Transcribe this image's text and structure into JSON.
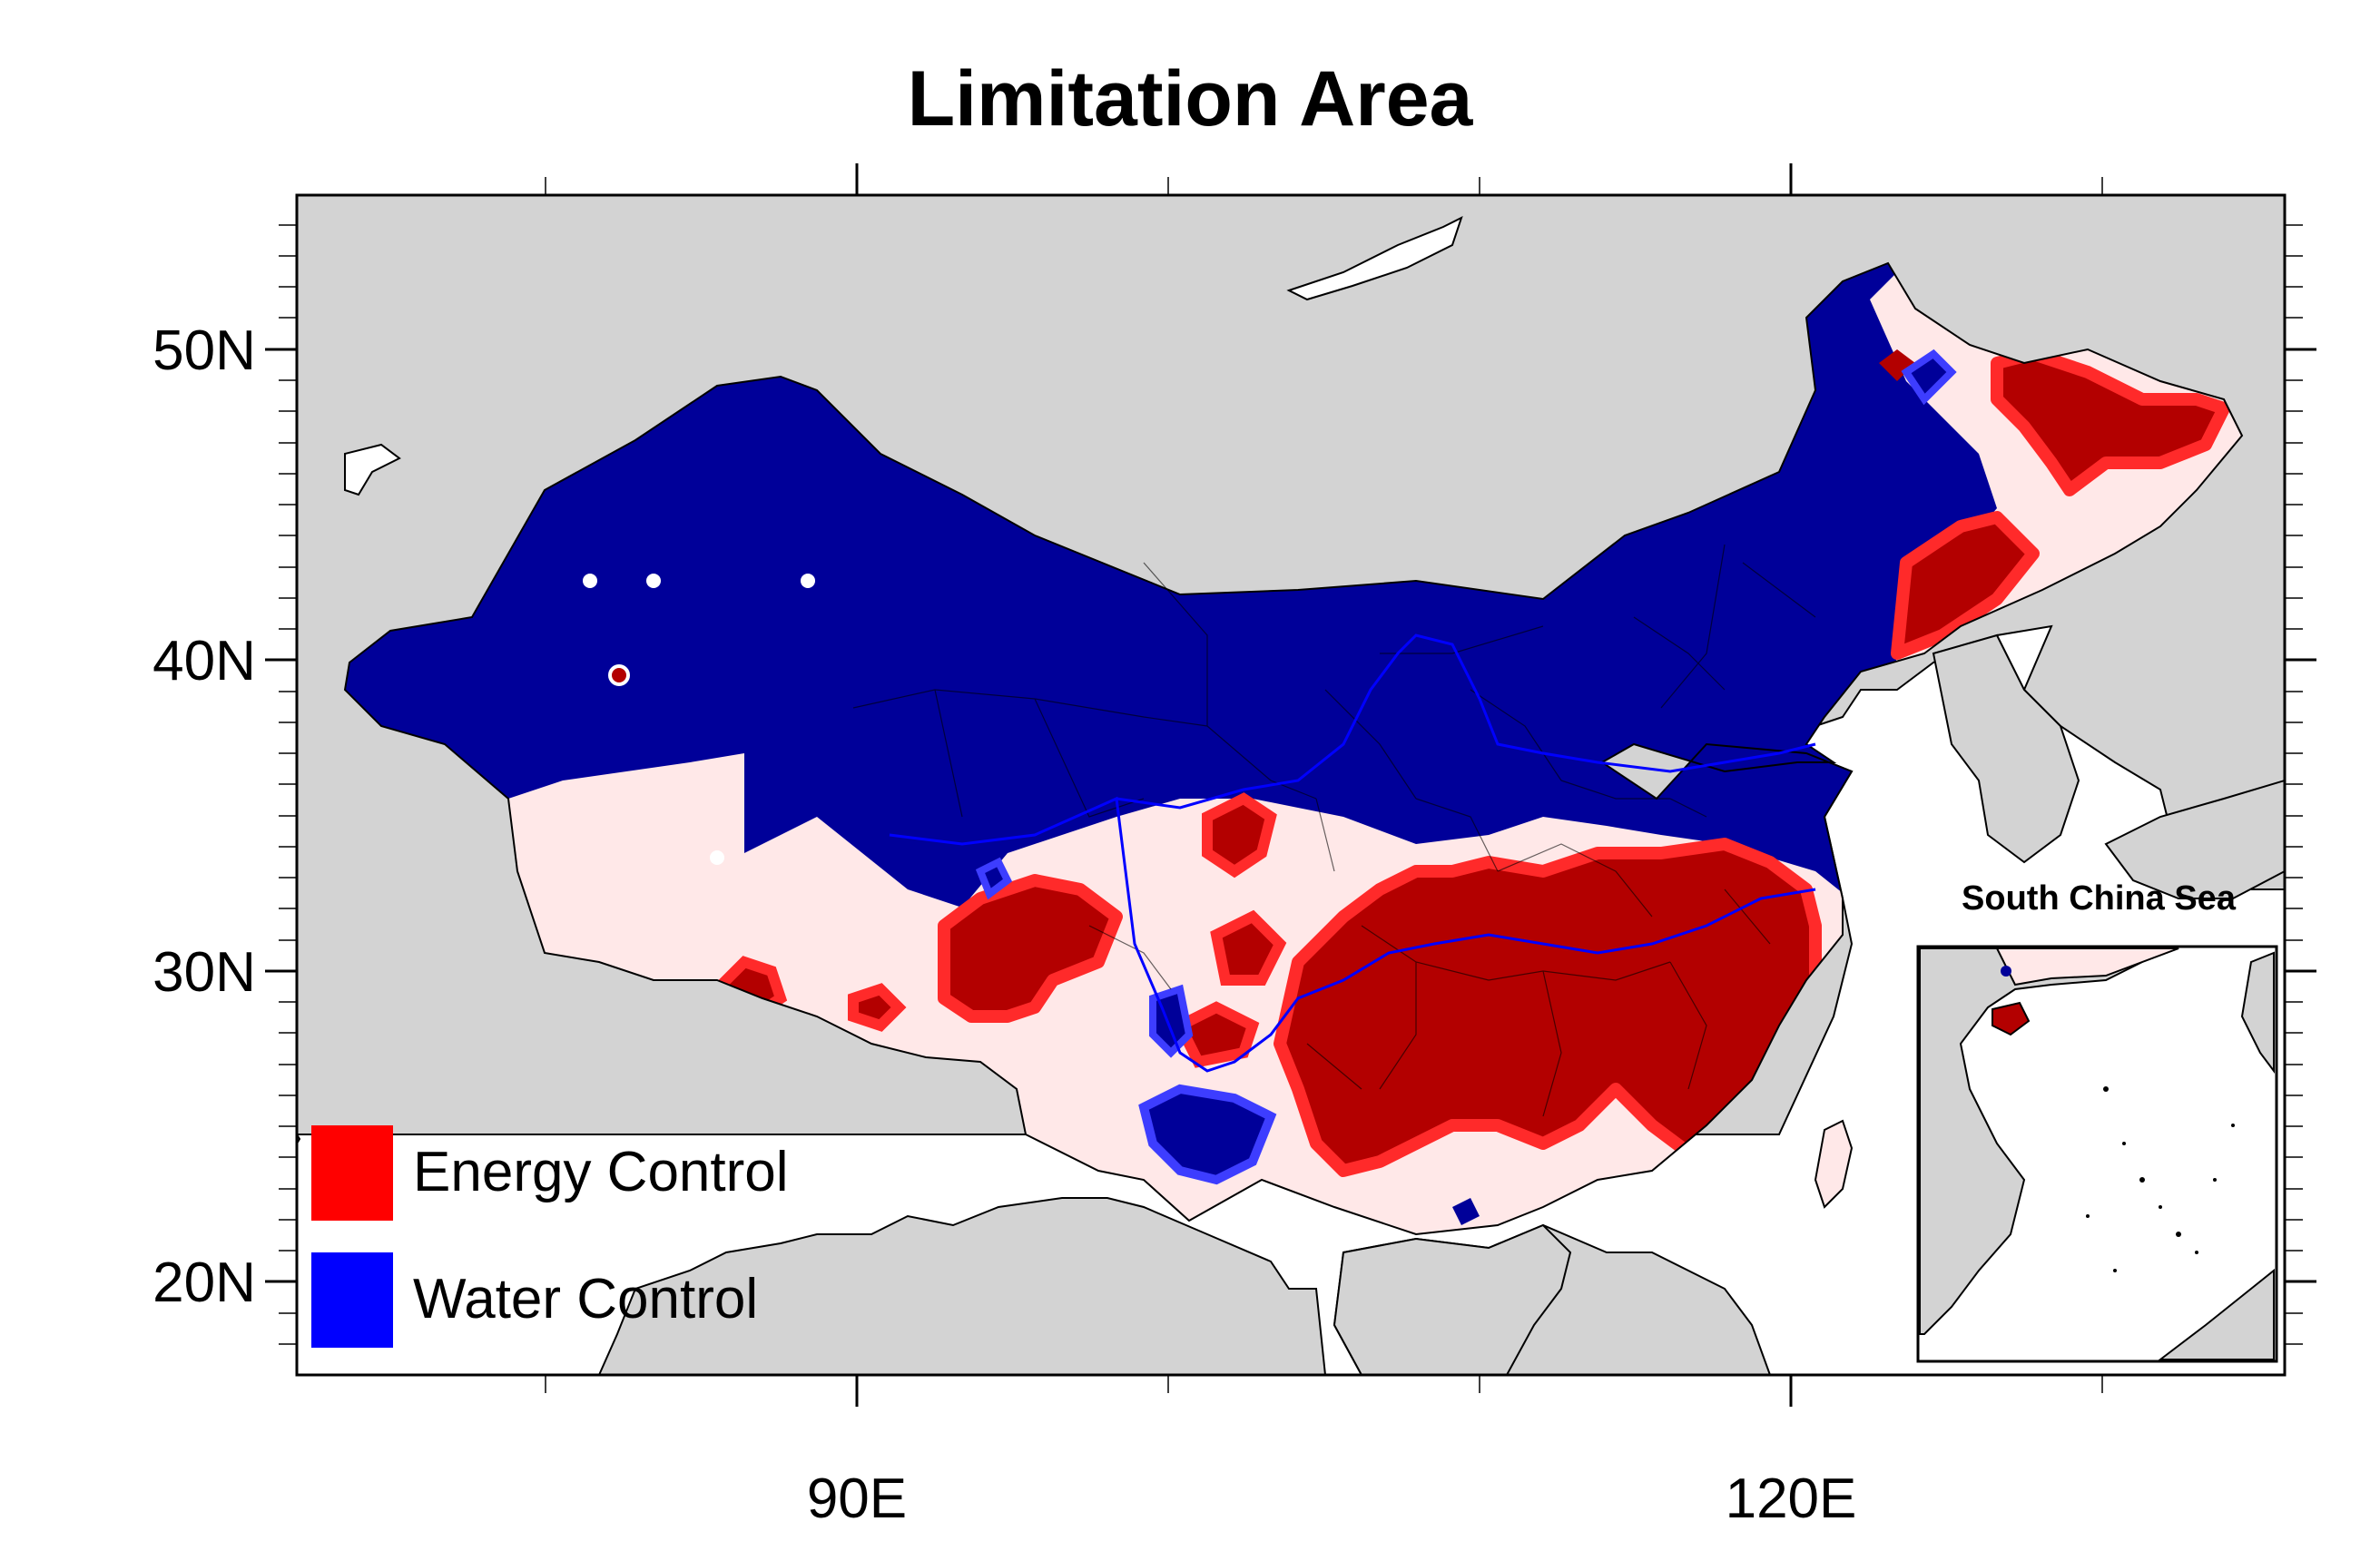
{
  "title": "Limitation Area",
  "colors": {
    "background": "#d3d3d3",
    "sea": "#ffffff",
    "water_control": "#000099",
    "energy_control": "#b30000",
    "transition": "#ffe8e8",
    "legend_energy": "#ff0000",
    "legend_water": "#0000ff",
    "river": "#0000ff"
  },
  "axes": {
    "lat_labels": [
      "50N",
      "40N",
      "30N",
      "20N"
    ],
    "lon_labels": [
      "90E",
      "120E"
    ]
  },
  "legend": {
    "energy_label": "Energy Control",
    "water_label": "Water Control"
  },
  "inset": {
    "label": "South China Sea"
  }
}
